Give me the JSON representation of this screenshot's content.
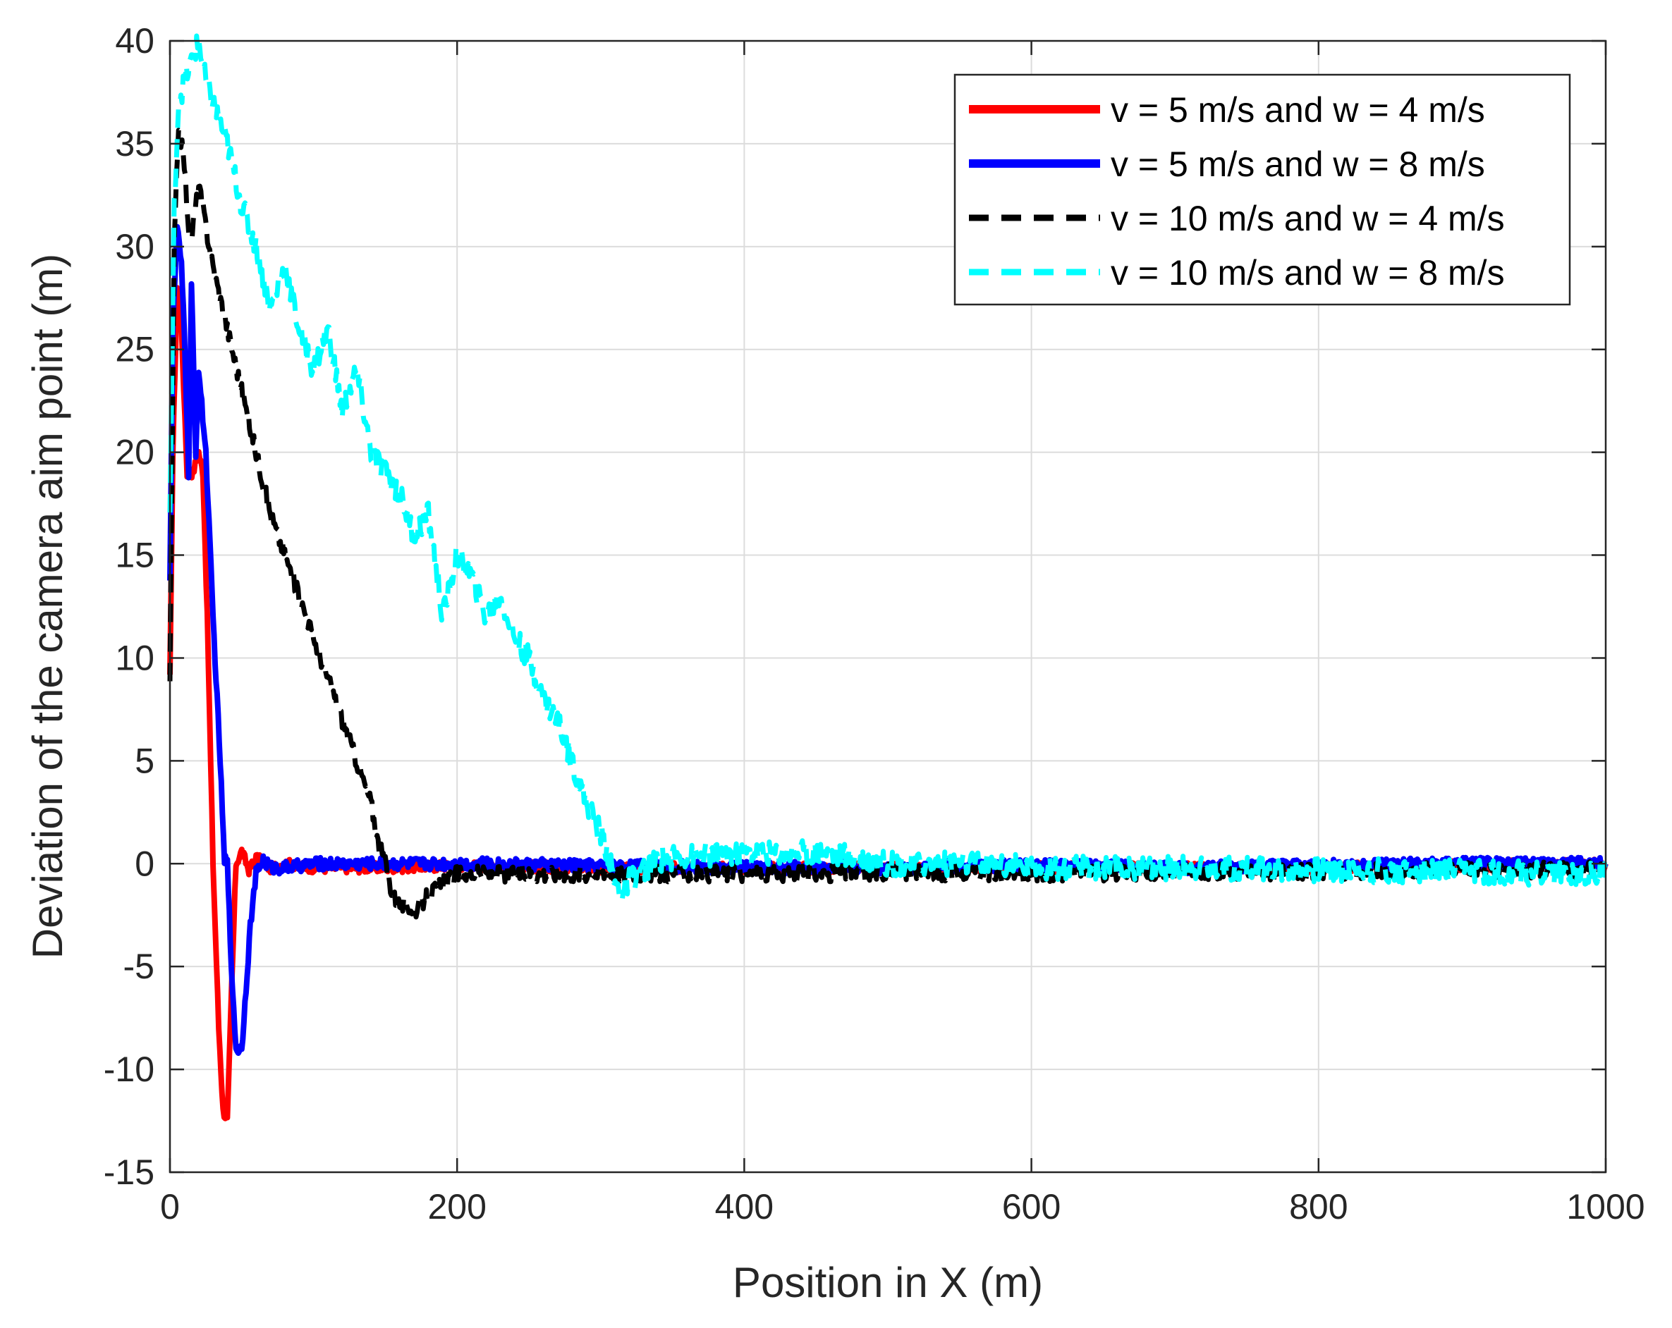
{
  "chart_data": {
    "type": "line",
    "title": "",
    "xlabel": "Position in X (m)",
    "ylabel": "Deviation of the camera aim point (m)",
    "xlim": [
      0,
      1000
    ],
    "ylim": [
      -15,
      40
    ],
    "grid": true,
    "legend_position": "top-right",
    "xticks": [
      0,
      200,
      400,
      600,
      800,
      1000
    ],
    "yticks": [
      -15,
      -10,
      -5,
      0,
      5,
      10,
      15,
      20,
      25,
      30,
      35,
      40
    ],
    "xtick_labels": [
      "0",
      "200",
      "400",
      "600",
      "800",
      "1000"
    ],
    "ytick_labels": [
      "-15",
      "-10",
      "-5",
      "0",
      "5",
      "10",
      "15",
      "20",
      "25",
      "30",
      "35",
      "40"
    ],
    "series": [
      {
        "name": "v = 5 m/s and w = 4 m/s",
        "color": "#ff0000",
        "style": "solid",
        "noise": 0.25,
        "x": [
          0,
          2,
          5,
          8,
          12,
          16,
          20,
          23,
          26,
          30,
          34,
          37,
          40,
          43,
          46,
          50,
          55,
          60,
          70,
          80,
          100,
          150,
          200,
          300,
          400,
          500,
          600,
          700,
          800,
          900,
          1000
        ],
        "y": [
          9,
          20,
          28,
          26,
          19,
          19,
          20,
          19,
          12,
          0,
          -8,
          -12,
          -12.5,
          -6,
          0,
          0.6,
          -0.3,
          0.3,
          -0.2,
          0,
          -0.2,
          -0.2,
          -0.1,
          -0.2,
          -0.2,
          -0.2,
          -0.2,
          -0.2,
          -0.2,
          -0.1,
          0
        ]
      },
      {
        "name": "v = 5 m/s and w = 8 m/s",
        "color": "#0000ff",
        "style": "solid",
        "noise": 0.3,
        "x": [
          0,
          2,
          5,
          8,
          10,
          13,
          15,
          18,
          20,
          25,
          30,
          35,
          38,
          40,
          42,
          46,
          50,
          53,
          56,
          60,
          65,
          70,
          80,
          100,
          150,
          200,
          300,
          400,
          500,
          600,
          700,
          800,
          900,
          1000
        ],
        "y": [
          14,
          26,
          31,
          29,
          26,
          19,
          28,
          20,
          24,
          20,
          12,
          5,
          0,
          0.5,
          -4,
          -9,
          -9,
          -6,
          -3,
          -0.5,
          0.2,
          -0.2,
          -0.2,
          0,
          0,
          0,
          -0.1,
          -0.2,
          -0.2,
          -0.1,
          -0.2,
          -0.1,
          0,
          0
        ]
      },
      {
        "name": "v = 10 m/s and w = 4 m/s",
        "color": "#000000",
        "style": "dashed",
        "noise": 0.4,
        "x": [
          0,
          3,
          6,
          10,
          14,
          20,
          30,
          40,
          50,
          60,
          70,
          80,
          90,
          100,
          110,
          120,
          130,
          140,
          145,
          150,
          155,
          160,
          165,
          170,
          175,
          180,
          190,
          200,
          250,
          300,
          350,
          400,
          450,
          500,
          600,
          700,
          800,
          900,
          1000
        ],
        "y": [
          9,
          30,
          36,
          34,
          30,
          33,
          29,
          26,
          23,
          20,
          17,
          15,
          13,
          11,
          9,
          7,
          5,
          3,
          1,
          0,
          -1.5,
          -2,
          -2,
          -2.3,
          -2,
          -1.5,
          -1,
          -0.5,
          -0.5,
          -0.5,
          -0.5,
          -0.5,
          -0.5,
          -0.4,
          -0.5,
          -0.4,
          -0.4,
          -0.3,
          -0.3
        ]
      },
      {
        "name": "v = 10 m/s and w = 8 m/s",
        "color": "#00ffff",
        "style": "dashed",
        "noise": 0.6,
        "x": [
          0,
          3,
          6,
          10,
          15,
          20,
          25,
          30,
          40,
          50,
          60,
          70,
          80,
          90,
          100,
          110,
          120,
          130,
          140,
          150,
          160,
          170,
          180,
          190,
          200,
          210,
          220,
          230,
          240,
          250,
          260,
          270,
          280,
          290,
          300,
          305,
          310,
          315,
          320,
          330,
          340,
          350,
          400,
          450,
          500,
          550,
          600,
          700,
          800,
          900,
          1000
        ],
        "y": [
          17,
          32,
          37,
          38,
          39,
          40,
          38,
          37,
          35,
          32,
          30,
          27,
          29,
          26,
          24,
          26,
          22,
          24,
          20,
          19,
          18,
          16,
          17,
          12,
          15,
          14,
          12,
          13,
          11,
          10,
          8,
          7,
          5,
          3,
          1.5,
          0.5,
          -1,
          -1.5,
          -0.8,
          -0.3,
          0.2,
          0.3,
          0.5,
          0.6,
          0,
          0,
          -0.2,
          -0.2,
          -0.3,
          -0.4,
          -0.5
        ]
      }
    ]
  }
}
